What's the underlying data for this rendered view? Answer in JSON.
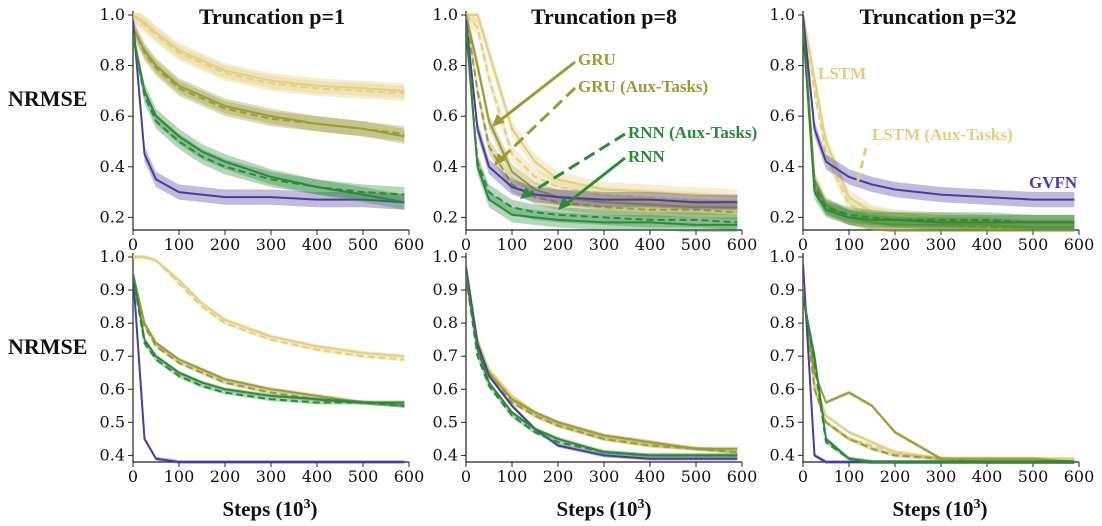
{
  "figure": {
    "titles": [
      "Truncation p=1",
      "Truncation p=8",
      "Truncation p=32"
    ],
    "ylabel": "NRMSE",
    "xlabel_main": "Steps (10",
    "xlabel_sup": "3",
    "xlabel_close": ")"
  },
  "colors": {
    "LSTM": "#e3cf7e",
    "LSTM (Aux-Tasks)": "#e3cf7e",
    "GRU": "#9c9b36",
    "GRU (Aux-Tasks)": "#9c9b36",
    "RNN": "#2a8a3a",
    "RNN (Aux-Tasks)": "#2a8a3a",
    "GVFN": "#4b3b9e"
  },
  "annotations": {
    "gru": "GRU",
    "gru_aux": "GRU (Aux-Tasks)",
    "rnn_aux": "RNN (Aux-Tasks)",
    "rnn": "RNN",
    "lstm": "LSTM",
    "lstm_aux": "LSTM (Aux-Tasks)",
    "gvfn": "GVFN"
  },
  "chart_data": [
    {
      "type": "line",
      "row": 0,
      "col": 0,
      "title": "Truncation p=1",
      "ylabel": "NRMSE",
      "xlabel": "",
      "xlim": [
        0,
        600
      ],
      "ylim": [
        0.15,
        1.0
      ],
      "xticks": [
        0,
        100,
        200,
        300,
        400,
        500,
        600
      ],
      "yticks": [
        0.2,
        0.4,
        0.6,
        0.8,
        1.0
      ],
      "x": [
        0,
        25,
        50,
        100,
        150,
        200,
        300,
        400,
        500,
        590
      ],
      "series": [
        {
          "name": "LSTM",
          "values": [
            1.0,
            0.97,
            0.93,
            0.86,
            0.82,
            0.78,
            0.74,
            0.72,
            0.71,
            0.7
          ]
        },
        {
          "name": "LSTM (Aux-Tasks)",
          "values": [
            1.0,
            0.96,
            0.92,
            0.85,
            0.81,
            0.77,
            0.73,
            0.71,
            0.7,
            0.69
          ]
        },
        {
          "name": "GRU",
          "values": [
            0.95,
            0.86,
            0.8,
            0.72,
            0.68,
            0.64,
            0.6,
            0.57,
            0.55,
            0.52
          ]
        },
        {
          "name": "GRU (Aux-Tasks)",
          "values": [
            0.95,
            0.85,
            0.79,
            0.71,
            0.67,
            0.63,
            0.59,
            0.57,
            0.55,
            0.53
          ]
        },
        {
          "name": "RNN",
          "values": [
            0.92,
            0.7,
            0.6,
            0.52,
            0.46,
            0.42,
            0.36,
            0.32,
            0.29,
            0.26
          ]
        },
        {
          "name": "RNN (Aux-Tasks)",
          "values": [
            0.92,
            0.68,
            0.58,
            0.5,
            0.44,
            0.4,
            0.35,
            0.32,
            0.3,
            0.29
          ]
        },
        {
          "name": "GVFN",
          "values": [
            0.98,
            0.45,
            0.35,
            0.3,
            0.29,
            0.28,
            0.28,
            0.27,
            0.27,
            0.26
          ]
        }
      ]
    },
    {
      "type": "line",
      "row": 0,
      "col": 1,
      "title": "Truncation p=8",
      "ylabel": "",
      "xlabel": "",
      "xlim": [
        0,
        600
      ],
      "ylim": [
        0.15,
        1.0
      ],
      "xticks": [
        0,
        100,
        200,
        300,
        400,
        500,
        600
      ],
      "yticks": [
        0.2,
        0.4,
        0.6,
        0.8,
        1.0
      ],
      "x": [
        0,
        25,
        50,
        100,
        150,
        200,
        300,
        400,
        500,
        590
      ],
      "series": [
        {
          "name": "LSTM",
          "values": [
            1.0,
            1.0,
            0.85,
            0.55,
            0.42,
            0.35,
            0.31,
            0.3,
            0.29,
            0.28
          ]
        },
        {
          "name": "LSTM (Aux-Tasks)",
          "values": [
            1.0,
            0.95,
            0.75,
            0.45,
            0.36,
            0.32,
            0.29,
            0.28,
            0.27,
            0.26
          ]
        },
        {
          "name": "GRU",
          "values": [
            1.0,
            0.8,
            0.58,
            0.38,
            0.31,
            0.28,
            0.26,
            0.25,
            0.24,
            0.24
          ]
        },
        {
          "name": "GRU (Aux-Tasks)",
          "values": [
            1.0,
            0.7,
            0.48,
            0.33,
            0.28,
            0.26,
            0.24,
            0.23,
            0.23,
            0.22
          ]
        },
        {
          "name": "RNN",
          "values": [
            0.95,
            0.4,
            0.27,
            0.21,
            0.2,
            0.19,
            0.18,
            0.18,
            0.17,
            0.17
          ]
        },
        {
          "name": "RNN (Aux-Tasks)",
          "values": [
            0.95,
            0.42,
            0.3,
            0.24,
            0.22,
            0.21,
            0.2,
            0.19,
            0.19,
            0.18
          ]
        },
        {
          "name": "GVFN",
          "values": [
            0.98,
            0.55,
            0.4,
            0.32,
            0.29,
            0.28,
            0.27,
            0.27,
            0.26,
            0.26
          ]
        }
      ]
    },
    {
      "type": "line",
      "row": 0,
      "col": 2,
      "title": "Truncation p=32",
      "ylabel": "",
      "xlabel": "",
      "xlim": [
        0,
        600
      ],
      "ylim": [
        0.15,
        1.0
      ],
      "xticks": [
        0,
        100,
        200,
        300,
        400,
        500,
        600
      ],
      "yticks": [
        0.2,
        0.4,
        0.6,
        0.8,
        1.0
      ],
      "x": [
        0,
        25,
        50,
        100,
        150,
        200,
        300,
        400,
        500,
        590
      ],
      "series": [
        {
          "name": "LSTM",
          "values": [
            1.0,
            0.75,
            0.5,
            0.28,
            0.22,
            0.2,
            0.19,
            0.18,
            0.18,
            0.18
          ]
        },
        {
          "name": "LSTM (Aux-Tasks)",
          "values": [
            1.0,
            0.7,
            0.45,
            0.25,
            0.21,
            0.2,
            0.19,
            0.18,
            0.18,
            0.18
          ]
        },
        {
          "name": "GRU",
          "values": [
            1.0,
            0.35,
            0.25,
            0.2,
            0.18,
            0.17,
            0.17,
            0.17,
            0.16,
            0.16
          ]
        },
        {
          "name": "GRU (Aux-Tasks)",
          "values": [
            1.0,
            0.33,
            0.24,
            0.2,
            0.18,
            0.17,
            0.17,
            0.16,
            0.16,
            0.16
          ]
        },
        {
          "name": "RNN",
          "values": [
            0.95,
            0.3,
            0.23,
            0.2,
            0.19,
            0.19,
            0.18,
            0.18,
            0.18,
            0.18
          ]
        },
        {
          "name": "RNN (Aux-Tasks)",
          "values": [
            0.95,
            0.32,
            0.24,
            0.21,
            0.2,
            0.19,
            0.19,
            0.19,
            0.18,
            0.18
          ]
        },
        {
          "name": "GVFN",
          "values": [
            1.0,
            0.55,
            0.42,
            0.36,
            0.33,
            0.31,
            0.29,
            0.28,
            0.27,
            0.27
          ]
        }
      ]
    },
    {
      "type": "line",
      "row": 1,
      "col": 0,
      "title": "",
      "ylabel": "NRMSE",
      "xlabel": "Steps (10^3)",
      "xlim": [
        0,
        600
      ],
      "ylim": [
        0.38,
        1.0
      ],
      "xticks": [
        0,
        100,
        200,
        300,
        400,
        500,
        600
      ],
      "yticks": [
        0.4,
        0.5,
        0.6,
        0.7,
        0.8,
        0.9,
        1.0
      ],
      "x": [
        0,
        25,
        50,
        100,
        150,
        200,
        300,
        400,
        500,
        590
      ],
      "series": [
        {
          "name": "LSTM",
          "values": [
            1.0,
            1.0,
            0.99,
            0.93,
            0.86,
            0.81,
            0.76,
            0.73,
            0.71,
            0.7
          ]
        },
        {
          "name": "LSTM (Aux-Tasks)",
          "values": [
            1.0,
            1.0,
            0.99,
            0.92,
            0.85,
            0.8,
            0.75,
            0.72,
            0.7,
            0.69
          ]
        },
        {
          "name": "GRU",
          "values": [
            0.95,
            0.8,
            0.74,
            0.69,
            0.66,
            0.63,
            0.6,
            0.58,
            0.56,
            0.55
          ]
        },
        {
          "name": "GRU (Aux-Tasks)",
          "values": [
            0.94,
            0.79,
            0.73,
            0.68,
            0.65,
            0.62,
            0.59,
            0.57,
            0.56,
            0.55
          ]
        },
        {
          "name": "RNN",
          "values": [
            0.95,
            0.75,
            0.7,
            0.65,
            0.62,
            0.6,
            0.58,
            0.57,
            0.56,
            0.56
          ]
        },
        {
          "name": "RNN (Aux-Tasks)",
          "values": [
            0.94,
            0.74,
            0.69,
            0.64,
            0.61,
            0.59,
            0.57,
            0.56,
            0.56,
            0.55
          ]
        },
        {
          "name": "GVFN",
          "values": [
            0.95,
            0.45,
            0.39,
            0.38,
            0.38,
            0.38,
            0.38,
            0.38,
            0.38,
            0.38
          ]
        }
      ]
    },
    {
      "type": "line",
      "row": 1,
      "col": 1,
      "title": "",
      "ylabel": "",
      "xlabel": "Steps (10^3)",
      "xlim": [
        0,
        600
      ],
      "ylim": [
        0.38,
        1.0
      ],
      "xticks": [
        0,
        100,
        200,
        300,
        400,
        500,
        600
      ],
      "yticks": [
        0.4,
        0.5,
        0.6,
        0.7,
        0.8,
        0.9,
        1.0
      ],
      "x": [
        0,
        25,
        50,
        100,
        150,
        200,
        300,
        400,
        500,
        590
      ],
      "series": [
        {
          "name": "LSTM",
          "values": [
            0.95,
            0.75,
            0.66,
            0.58,
            0.53,
            0.5,
            0.46,
            0.44,
            0.42,
            0.41
          ]
        },
        {
          "name": "LSTM (Aux-Tasks)",
          "values": [
            0.95,
            0.74,
            0.65,
            0.57,
            0.52,
            0.49,
            0.45,
            0.43,
            0.42,
            0.41
          ]
        },
        {
          "name": "GRU",
          "values": [
            0.94,
            0.73,
            0.65,
            0.57,
            0.53,
            0.5,
            0.46,
            0.44,
            0.42,
            0.42
          ]
        },
        {
          "name": "GRU (Aux-Tasks)",
          "values": [
            0.94,
            0.72,
            0.64,
            0.56,
            0.52,
            0.49,
            0.45,
            0.43,
            0.42,
            0.41
          ]
        },
        {
          "name": "RNN",
          "values": [
            0.95,
            0.72,
            0.62,
            0.53,
            0.48,
            0.45,
            0.41,
            0.4,
            0.4,
            0.4
          ]
        },
        {
          "name": "RNN (Aux-Tasks)",
          "values": [
            0.94,
            0.7,
            0.61,
            0.52,
            0.47,
            0.44,
            0.41,
            0.4,
            0.4,
            0.4
          ]
        },
        {
          "name": "GVFN",
          "values": [
            0.97,
            0.74,
            0.64,
            0.55,
            0.48,
            0.43,
            0.4,
            0.39,
            0.39,
            0.39
          ]
        }
      ]
    },
    {
      "type": "line",
      "row": 1,
      "col": 2,
      "title": "",
      "ylabel": "",
      "xlabel": "Steps (10^3)",
      "xlim": [
        0,
        600
      ],
      "ylim": [
        0.38,
        1.0
      ],
      "xticks": [
        0,
        100,
        200,
        300,
        400,
        500,
        600
      ],
      "yticks": [
        0.4,
        0.5,
        0.6,
        0.7,
        0.8,
        0.9,
        1.0
      ],
      "x": [
        0,
        25,
        50,
        100,
        150,
        200,
        300,
        400,
        500,
        590
      ],
      "series": [
        {
          "name": "LSTM",
          "values": [
            0.92,
            0.62,
            0.52,
            0.47,
            0.44,
            0.41,
            0.39,
            0.39,
            0.39,
            0.39
          ]
        },
        {
          "name": "LSTM (Aux-Tasks)",
          "values": [
            0.92,
            0.6,
            0.5,
            0.45,
            0.43,
            0.41,
            0.39,
            0.39,
            0.39,
            0.39
          ]
        },
        {
          "name": "GRU",
          "values": [
            0.9,
            0.65,
            0.56,
            0.59,
            0.55,
            0.47,
            0.39,
            0.39,
            0.39,
            0.38
          ]
        },
        {
          "name": "GRU (Aux-Tasks)",
          "values": [
            0.9,
            0.6,
            0.5,
            0.45,
            0.42,
            0.4,
            0.39,
            0.38,
            0.38,
            0.38
          ]
        },
        {
          "name": "RNN",
          "values": [
            0.88,
            0.7,
            0.45,
            0.39,
            0.38,
            0.38,
            0.38,
            0.38,
            0.38,
            0.38
          ]
        },
        {
          "name": "RNN (Aux-Tasks)",
          "values": [
            0.88,
            0.68,
            0.44,
            0.39,
            0.38,
            0.38,
            0.38,
            0.38,
            0.38,
            0.38
          ]
        },
        {
          "name": "GVFN",
          "values": [
            0.98,
            0.4,
            0.38,
            0.38,
            0.38,
            0.38,
            0.38,
            0.38,
            0.38,
            0.38
          ]
        }
      ]
    }
  ]
}
